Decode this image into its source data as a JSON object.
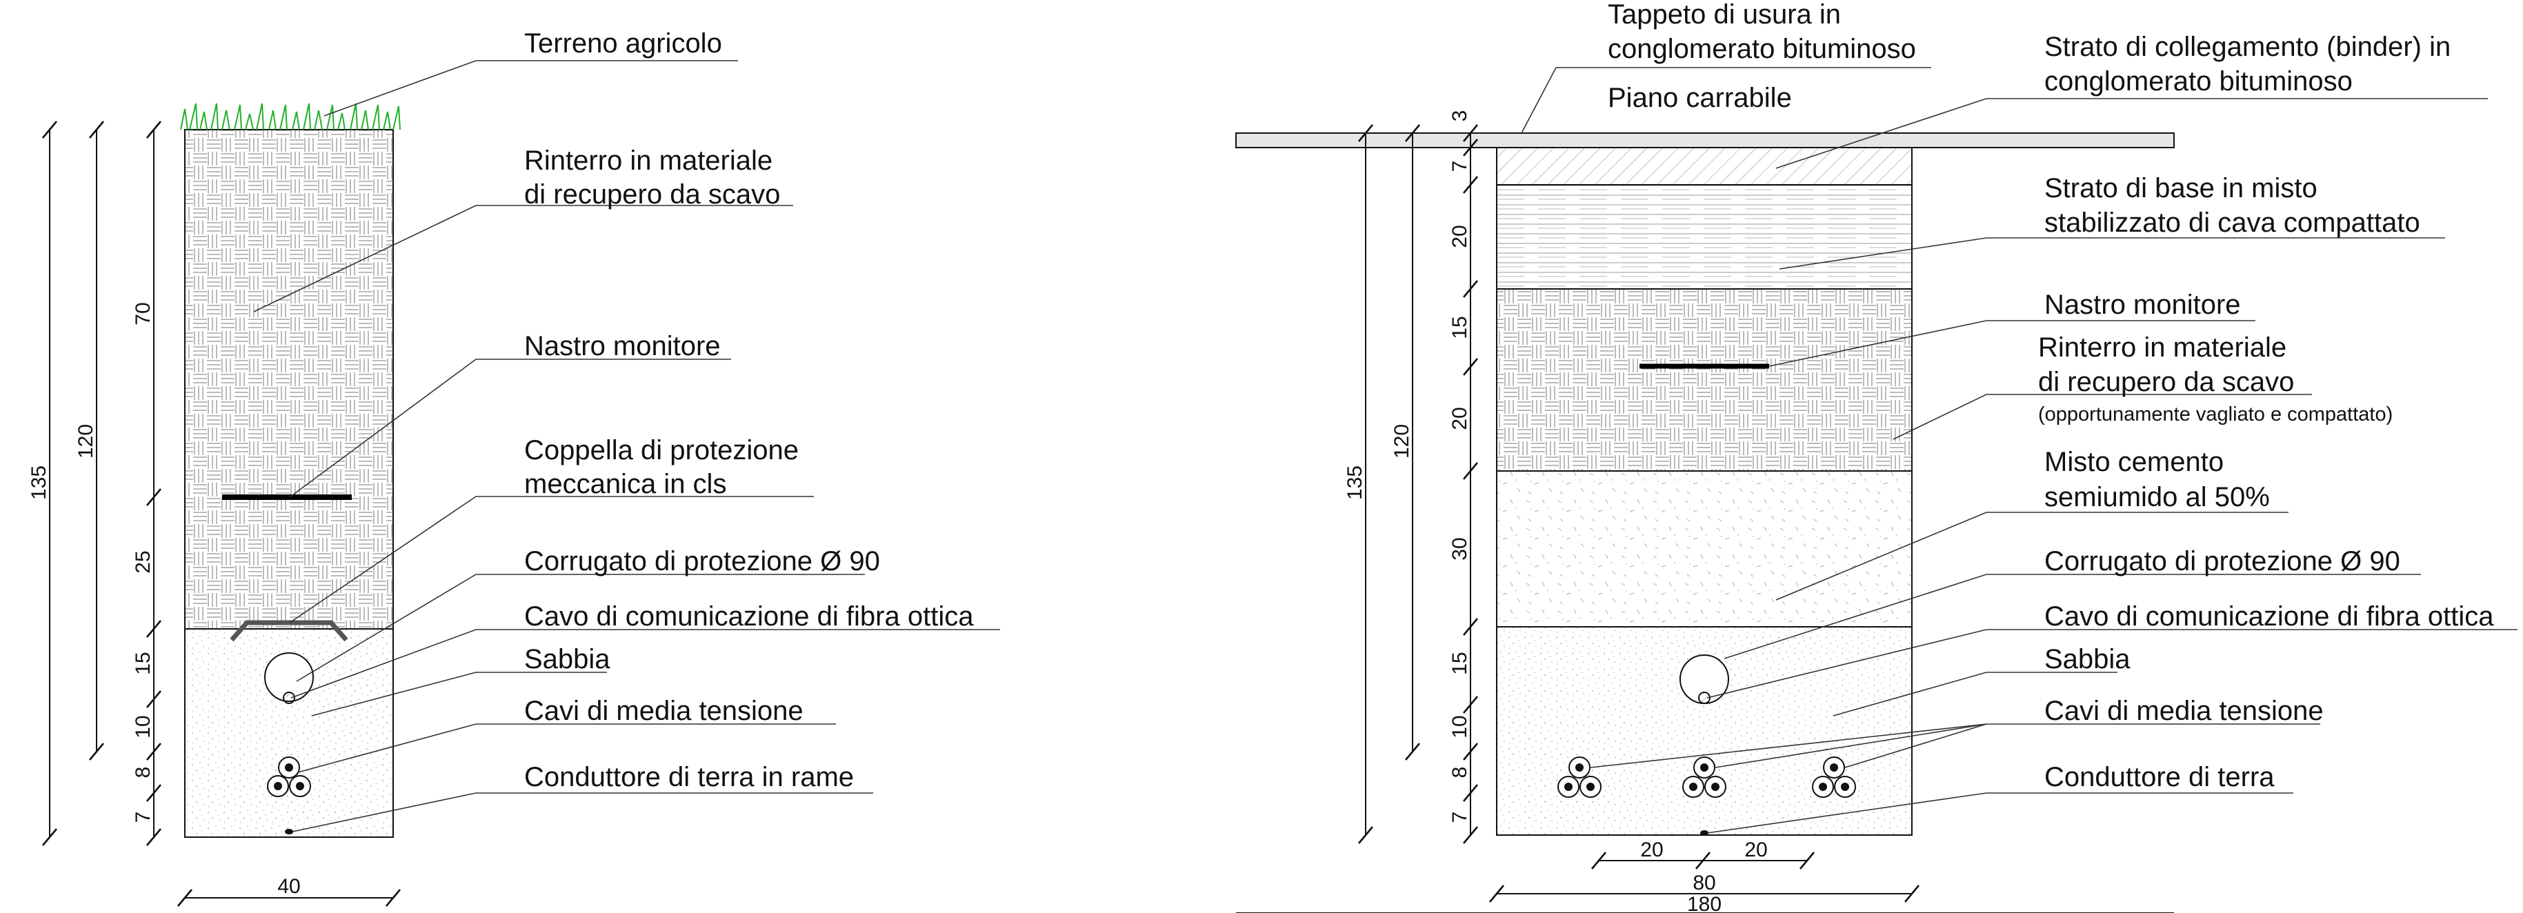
{
  "left_section": {
    "labels": {
      "terreno": "Terreno agricolo",
      "rinterro_1": "Rinterro in materiale",
      "rinterro_2": "di recupero da scavo",
      "nastro": "Nastro monitore",
      "coppella_1": "Coppella di protezione",
      "coppella_2": "meccanica in cls",
      "corrugato": "Corrugato di protezione Ø 90",
      "cavo_fibra": "Cavo di comunicazione di fibra ottica",
      "sabbia": "Sabbia",
      "cavi_mt": "Cavi di  media  tensione",
      "conduttore": "Conduttore di terra in rame"
    },
    "dims": {
      "total_outer": "135",
      "total_inner": "120",
      "d70": "70",
      "d25": "25",
      "d15": "15",
      "d10": "10",
      "d8": "8",
      "d7": "7",
      "width": "40"
    }
  },
  "right_section": {
    "labels": {
      "tappeto_1": "Tappeto di usura in",
      "tappeto_2": "conglomerato bituminoso",
      "piano": "Piano carrabile",
      "binder_1": "Strato di collegamento (binder) in",
      "binder_2": "conglomerato bituminoso",
      "base_1": "Strato di base in misto",
      "base_2": "stabilizzato di cava compattato",
      "nastro": "Nastro monitore",
      "rinterro_1": "Rinterro in materiale",
      "rinterro_2": "di recupero da scavo",
      "rinterro_3": "(opportunamente vagliato e compattato)",
      "misto_1": "Misto cemento",
      "misto_2": "semiumido al 50%",
      "corrugato": "Corrugato di protezione Ø 90",
      "cavo_fibra": "Cavo di comunicazione di fibra ottica",
      "sabbia": "Sabbia",
      "cavi_mt": "Cavi di  media  tensione",
      "conduttore": "Conduttore di terra"
    },
    "dims": {
      "total_outer": "135",
      "total_inner": "120",
      "d3": "3",
      "d7a": "7",
      "d20a": "20",
      "d15a": "15",
      "d20b": "20",
      "d30": "30",
      "d15b": "15",
      "d10": "10",
      "d8": "8",
      "d7b": "7",
      "spacing_1": "20",
      "spacing_2": "20",
      "width_trench": "80",
      "width_road": "180"
    }
  },
  "colors": {
    "grass": "#22b22a",
    "line": "#111111",
    "hatch": "#777777",
    "road_fill": "#e6e6e6"
  }
}
